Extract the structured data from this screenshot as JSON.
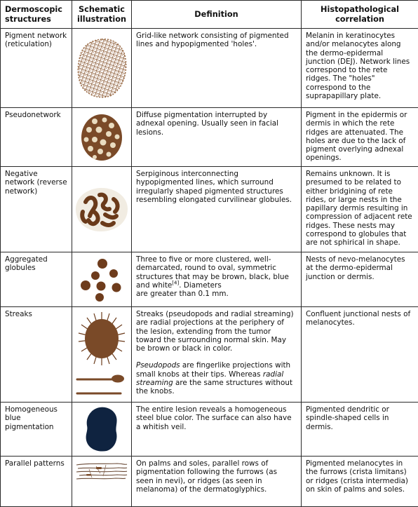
{
  "headers": {
    "structure": "Dermoscopic structures",
    "illustration": "Schematic illustration",
    "definition": "Definition",
    "correlation": "Histopathological correlation"
  },
  "rows": [
    {
      "structure": "Pigment network (reticulation)",
      "illustration": "pigment-network-image",
      "definition": "Grid-like network consisting of pigmented lines and hypopigmented 'holes'.",
      "correlation": "Melanin in keratinocytes and/or melanocytes along the dermo-epidermal junction (DEJ). Network lines correspond to the rete ridges. The \"holes\" correspond to the suprapapillary plate."
    },
    {
      "structure": "Pseudonetwork",
      "illustration": "pseudonetwork-image",
      "definition": "Diffuse pigmentation interrupted by adnexal opening. Usually seen in facial lesions.",
      "correlation": "Pigment in the epidermis or dermis in which the rete ridges are attenuated. The holes are due to the lack of pigment overlying adnexal openings."
    },
    {
      "structure": "Negative network (reverse network)",
      "illustration": "negative-network-image",
      "definition": "Serpiginous interconnecting hypopigmented lines, which surround irregularly shaped pigmented structures resembling elongated curvilinear globules.",
      "correlation": "Remains unknown. It is presumed to be related to either bridgining of rete rides, or large nests in the papillary dermis resulting in compression of adjacent rete ridges. These nests may correspond to globules that are not sphirical in shape."
    },
    {
      "structure": "Aggregated globules",
      "illustration": "aggregated-globules-image",
      "definition_main": "Three to five or more clustered, well-demarcated, round to oval, symmetric structures that may be brown, black, blue and white",
      "definition_ref": "[4]",
      "definition_tail1": ". Diameters",
      "definition_tail2": "are greater than 0.1 mm.",
      "correlation": "Nests of nevo-melanocytes at the dermo-epidermal junction or dermis."
    },
    {
      "structure": "Streaks",
      "illustration": "streaks-image",
      "definition": "Streaks (pseudopods and radial streaming) are radial projections at the periphery of the lesion, extending from the tumor toward the surrounding normal skin. May be brown or black in color.",
      "definition_2a": "Pseudopods",
      "definition_2b": " are fingerlike projections with small knobs at their tips. Whereas ",
      "definition_2c": "radial streaming",
      "definition_2d": " are the same structures without the knobs.",
      "correlation": "Confluent junctional nests of melanocytes."
    },
    {
      "structure": "Homogeneous blue pigmentation",
      "illustration": "homogeneous-blue-image",
      "definition": "The entire lesion reveals a homogeneous steel blue color. The surface can also have a whitish veil.",
      "correlation": "Pigmented dendritic or spindle-shaped cells in dermis."
    },
    {
      "structure": "Parallel patterns",
      "illustration": "parallel-patterns-image",
      "definition": "On palms and soles, parallel rows of pigmentation following the furrows (as seen in nevi), or ridges (as seen in melanoma) of the dermatoglyphics.",
      "correlation": "Pigmented melanocytes in the furrows (crista limitans) or ridges (crista intermedia) on skin of palms and soles."
    }
  ],
  "colors": {
    "border": "#2a2a2a",
    "brown": "#7a4a28",
    "dark_brown": "#5a3216",
    "light_dot": "#e9dcc0",
    "blue": "#0f2340",
    "halo": "#f1ece2"
  }
}
